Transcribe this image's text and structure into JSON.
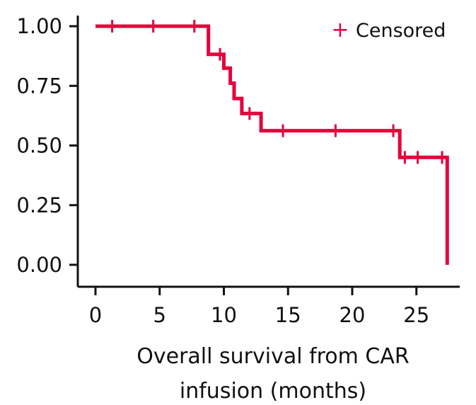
{
  "chart_data": {
    "type": "line",
    "subtype": "kaplan-meier survival curve",
    "xlabel_lines": [
      "Overall survival from CAR",
      "infusion (months)"
    ],
    "ylabel": "",
    "xlim": [
      0,
      27.5
    ],
    "ylim": [
      0,
      1
    ],
    "x_ticks": [
      0,
      5,
      10,
      15,
      20,
      25
    ],
    "y_ticks": [
      "0.00",
      "0.25",
      "0.50",
      "0.75",
      "1.00"
    ],
    "grid": false,
    "legend_position": "top-right",
    "color": "#E4003B",
    "series": [
      {
        "step_points": [
          {
            "x": 0,
            "y": 1.0
          },
          {
            "x": 8.8,
            "y": 1.0
          },
          {
            "x": 8.8,
            "y": 0.882
          },
          {
            "x": 10.0,
            "y": 0.882
          },
          {
            "x": 10.0,
            "y": 0.824
          },
          {
            "x": 10.5,
            "y": 0.824
          },
          {
            "x": 10.5,
            "y": 0.761
          },
          {
            "x": 10.8,
            "y": 0.761
          },
          {
            "x": 10.8,
            "y": 0.697
          },
          {
            "x": 11.4,
            "y": 0.697
          },
          {
            "x": 11.4,
            "y": 0.634
          },
          {
            "x": 12.9,
            "y": 0.634
          },
          {
            "x": 12.9,
            "y": 0.562
          },
          {
            "x": 23.7,
            "y": 0.562
          },
          {
            "x": 23.7,
            "y": 0.45
          },
          {
            "x": 27.4,
            "y": 0.45
          },
          {
            "x": 27.4,
            "y": 0.0
          }
        ]
      }
    ],
    "censored": [
      {
        "x": 1.3,
        "y": 1.0
      },
      {
        "x": 4.5,
        "y": 1.0
      },
      {
        "x": 7.7,
        "y": 1.0
      },
      {
        "x": 9.7,
        "y": 0.882
      },
      {
        "x": 10.0,
        "y": 0.852
      },
      {
        "x": 12.0,
        "y": 0.634
      },
      {
        "x": 14.6,
        "y": 0.562
      },
      {
        "x": 18.7,
        "y": 0.562
      },
      {
        "x": 23.2,
        "y": 0.562
      },
      {
        "x": 24.1,
        "y": 0.45
      },
      {
        "x": 25.1,
        "y": 0.45
      },
      {
        "x": 27.0,
        "y": 0.45
      }
    ],
    "legend": {
      "marker": "+",
      "label": "Censored"
    }
  }
}
